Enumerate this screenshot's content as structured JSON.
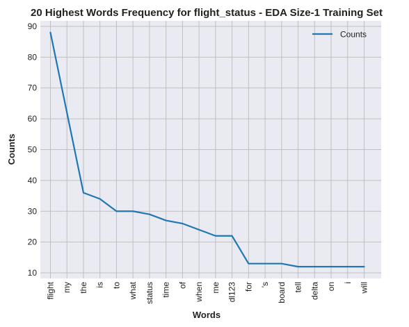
{
  "chart_data": {
    "type": "line",
    "title": "20 Highest Words Frequency for flight_status - EDA Size-1 Training Set",
    "xlabel": "Words",
    "ylabel": "Counts",
    "categories": [
      "flight",
      "my",
      "the",
      "is",
      "to",
      "what",
      "status",
      "time",
      "of",
      "when",
      "me",
      "dl123",
      "for",
      "'s",
      "board",
      "tell",
      "delta",
      "on",
      "i",
      "will"
    ],
    "series": [
      {
        "name": "Counts",
        "values": [
          88,
          62,
          36,
          34,
          30,
          30,
          29,
          27,
          26,
          24,
          22,
          22,
          13,
          13,
          13,
          12,
          12,
          12,
          12,
          12
        ],
        "color": "#1f77b4"
      }
    ],
    "ylim": [
      8.2,
      91.8
    ],
    "yticks": [
      10,
      20,
      30,
      40,
      50,
      60,
      70,
      80,
      90
    ],
    "grid": true,
    "legend_position": "top-right",
    "colors": {
      "plot_background": "#eaeaf2",
      "grid": "#c0c0c0"
    }
  }
}
